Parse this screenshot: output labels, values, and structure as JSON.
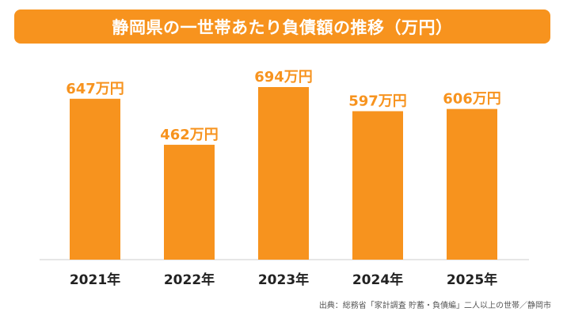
{
  "title": "静岡県の一世帯あたり負債額の推移（万円）",
  "source": "出典：総務省「家計調査 貯蓄・負債編」二人以上の世帯／静岡市",
  "colors": {
    "accent": "#f7931e",
    "baseline": "#cccccc"
  },
  "chart_data": {
    "type": "bar",
    "title": "静岡県の一世帯あたり負債額の推移（万円）",
    "categories": [
      "2021年",
      "2022年",
      "2023年",
      "2024年",
      "2025年"
    ],
    "values": [
      647,
      462,
      694,
      597,
      606
    ],
    "value_labels": [
      "647万円",
      "462万円",
      "694万円",
      "597万円",
      "606万円"
    ],
    "unit": "万円",
    "ylim": [
      0,
      694
    ],
    "grid": false,
    "legend": "none"
  }
}
